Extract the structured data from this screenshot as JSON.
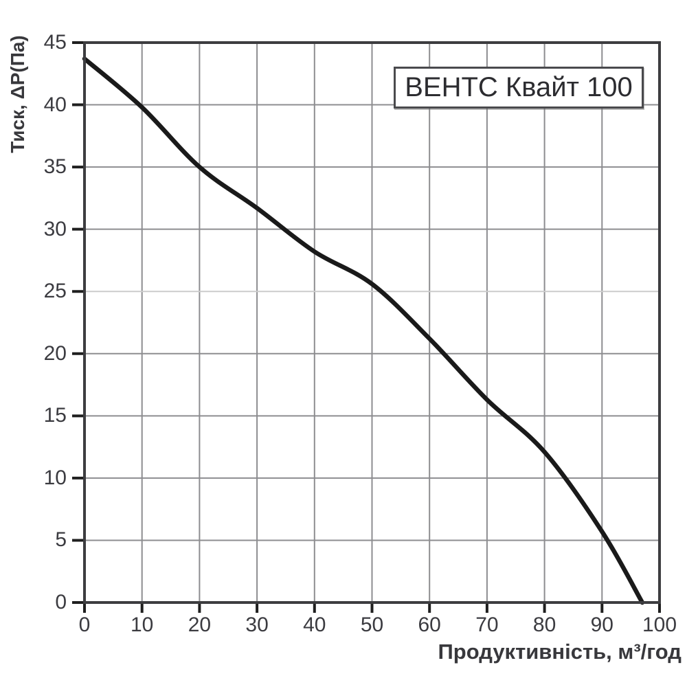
{
  "title": "ВЕНТС Квайт 100",
  "y_axis": {
    "label": "Тиск, ΔP(Па)",
    "ticks": [
      45,
      40,
      35,
      30,
      25,
      20,
      15,
      10,
      5,
      0
    ]
  },
  "x_axis": {
    "label": "Продуктивність, м³/год",
    "ticks": [
      0,
      10,
      20,
      30,
      40,
      50,
      60,
      70,
      80,
      90,
      100
    ]
  },
  "colors": {
    "curve": "#1a1a1a",
    "grid": "#8d8d90",
    "grid_light": "#cccccc",
    "frame": "#3d3d40",
    "tick": "#1f1f1f",
    "text": "#3b3b40",
    "background": "#ffffff"
  },
  "chart_data": {
    "type": "line",
    "title": "ВЕНТС Квайт 100",
    "xlabel": "Продуктивність, м³/год",
    "ylabel": "Тиск, ΔP(Па)",
    "xlim": [
      0,
      100
    ],
    "ylim": [
      0,
      45
    ],
    "x_tick_step": 10,
    "y_tick_step": 5,
    "grid": true,
    "light_gridline_y": 25,
    "legend_position": "none",
    "series": [
      {
        "name": "ВЕНТС Квайт 100",
        "points": [
          [
            0,
            43.7
          ],
          [
            10,
            39.8
          ],
          [
            20,
            35.0
          ],
          [
            30,
            31.7
          ],
          [
            40,
            28.2
          ],
          [
            50,
            25.6
          ],
          [
            60,
            21.2
          ],
          [
            70,
            16.3
          ],
          [
            80,
            12.1
          ],
          [
            90,
            5.7
          ],
          [
            97,
            0
          ]
        ]
      }
    ]
  }
}
